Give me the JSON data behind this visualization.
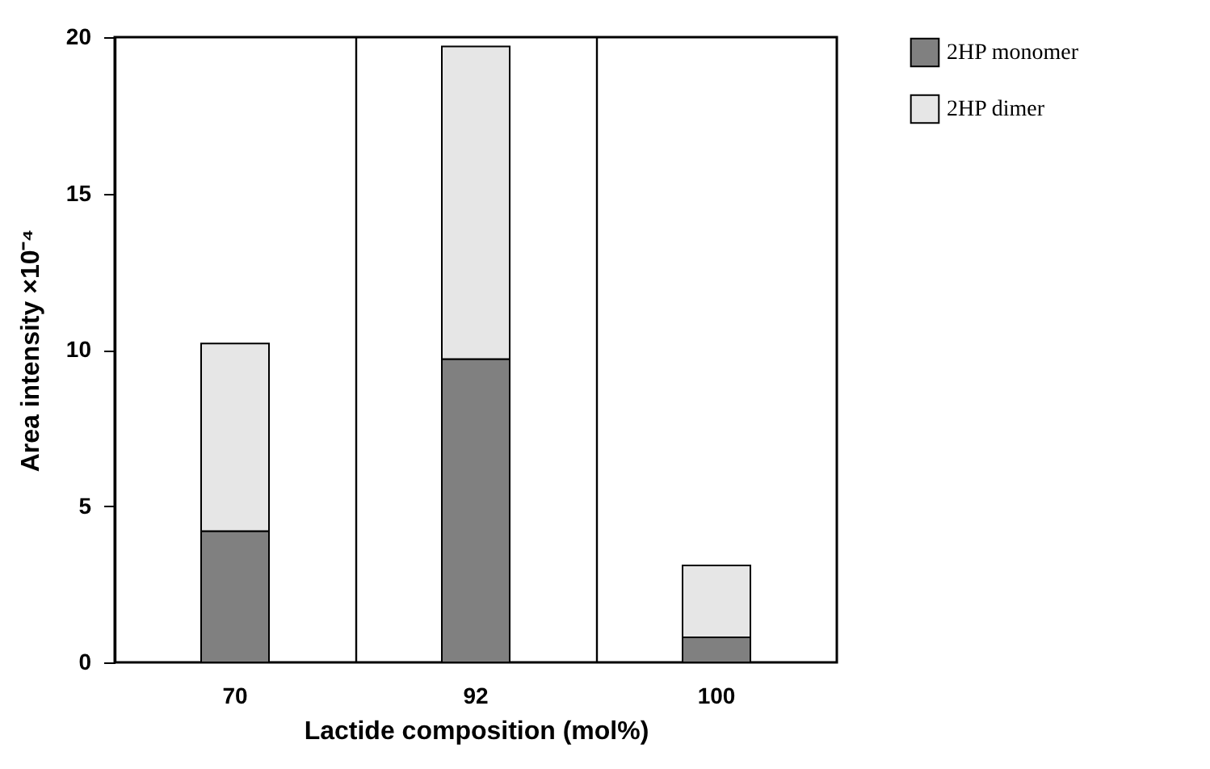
{
  "chart_data": {
    "type": "bar",
    "stacked": true,
    "xlabel": "Lactide composition (mol%)",
    "ylabel": "Area intensity ×10⁻⁴",
    "categories": [
      "70",
      "92",
      "100"
    ],
    "series": [
      {
        "name": "2HP monomer",
        "color": "#808080",
        "values": [
          4.2,
          9.7,
          0.8
        ]
      },
      {
        "name": "2HP dimer",
        "color": "#e6e6e6",
        "values": [
          6.0,
          10.0,
          2.3
        ]
      }
    ],
    "ylim": [
      0,
      20
    ],
    "yticks": [
      0,
      5,
      10,
      15,
      20
    ],
    "grid": "x",
    "legend": "top right"
  }
}
